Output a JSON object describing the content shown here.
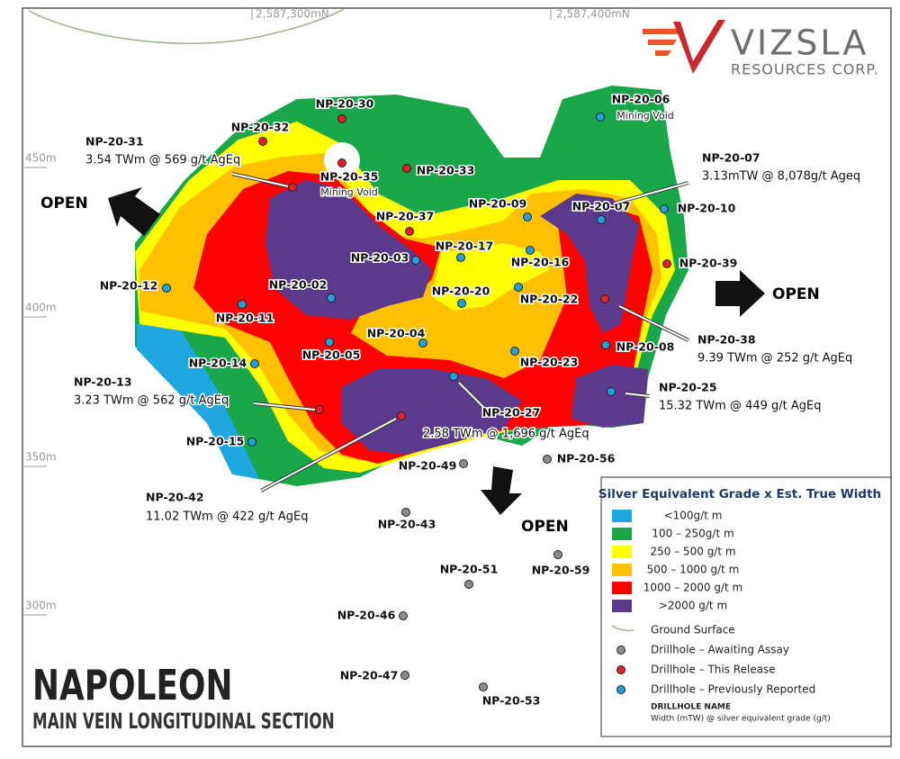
{
  "grid": {
    "eastings": [
      "2,587,300mN",
      "2,587,400mN"
    ],
    "elevations": [
      "450m",
      "400m",
      "350m",
      "300m"
    ]
  },
  "logo": {
    "name": "VIZSLA",
    "tagline": "RESOURCES CORP."
  },
  "title": "NAPOLEON",
  "subtitle": "MAIN VEIN LONGITUDINAL SECTION",
  "open_labels": [
    "OPEN",
    "OPEN",
    "OPEN"
  ],
  "drillholes": [
    {
      "label": "NP-20-30",
      "color": "#e31e24"
    },
    {
      "label": "NP-20-32",
      "color": "#e31e24"
    },
    {
      "label": "NP-20-35",
      "color": "#e31e24",
      "note": "Mining Void"
    },
    {
      "label": "NP-20-33",
      "color": "#e31e24"
    },
    {
      "label": "NP-20-37",
      "color": "#e31e24"
    },
    {
      "label": "NP-20-06",
      "color": "#1fa3dc",
      "note": "Mining Void"
    },
    {
      "label": "NP-20-09",
      "color": "#1fa3dc"
    },
    {
      "label": "NP-20-07",
      "color": "#1fa3dc"
    },
    {
      "label": "NP-20-10",
      "color": "#1fa3dc"
    },
    {
      "label": "NP-20-39",
      "color": "#e31e24"
    },
    {
      "label": "NP-20-17",
      "color": "#1fa3dc"
    },
    {
      "label": "NP-20-16",
      "color": "#1fa3dc"
    },
    {
      "label": "NP-20-03",
      "color": "#1fa3dc"
    },
    {
      "label": "NP-20-02",
      "color": "#1fa3dc"
    },
    {
      "label": "NP-20-20",
      "color": "#1fa3dc"
    },
    {
      "label": "NP-20-22",
      "color": "#1fa3dc"
    },
    {
      "label": "NP-20-12",
      "color": "#1fa3dc"
    },
    {
      "label": "NP-20-11",
      "color": "#1fa3dc"
    },
    {
      "label": "NP-20-04",
      "color": "#1fa3dc"
    },
    {
      "label": "NP-20-05",
      "color": "#1fa3dc"
    },
    {
      "label": "NP-20-14",
      "color": "#1fa3dc"
    },
    {
      "label": "NP-20-23",
      "color": "#1fa3dc"
    },
    {
      "label": "NP-20-08",
      "color": "#1fa3dc"
    },
    {
      "label": "NP-20-15",
      "color": "#1fa3dc"
    },
    {
      "label": "NP-20-49",
      "color": "#8c8c8c"
    },
    {
      "label": "NP-20-56",
      "color": "#8c8c8c"
    },
    {
      "label": "NP-20-43",
      "color": "#8c8c8c"
    },
    {
      "label": "NP-20-51",
      "color": "#8c8c8c"
    },
    {
      "label": "NP-20-59",
      "color": "#8c8c8c"
    },
    {
      "label": "NP-20-46",
      "color": "#8c8c8c"
    },
    {
      "label": "NP-20-47",
      "color": "#8c8c8c"
    },
    {
      "label": "NP-20-53",
      "color": "#8c8c8c"
    }
  ],
  "callouts": [
    {
      "hole": "NP-20-31",
      "text": "3.54 TWm @ 569 g/t AgEq",
      "color": "#e31e24"
    },
    {
      "hole": "NP-20-07",
      "text": "3.13mTW @ 8,078g/t Ageq"
    },
    {
      "hole": "NP-20-38",
      "text": "9.39 TWm @ 252 g/t AgEq",
      "color": "#e31e24"
    },
    {
      "hole": "NP-20-25",
      "text": "15.32 TWm @ 449 g/t AgEq",
      "color": "#1fa3dc"
    },
    {
      "hole": "NP-20-13",
      "text": "3.23 TWm @ 562 g/t AgEq",
      "color": "#e31e24"
    },
    {
      "hole": "NP-20-27",
      "text": "2.58 TWm @ 1,696 g/t AgEq",
      "color": "#1fa3dc"
    },
    {
      "hole": "NP-20-42",
      "text": "11.02 TWm @ 422 g/t AgEq",
      "color": "#e31e24"
    }
  ],
  "legend": {
    "title": "Silver Equivalent Grade x Est. True Width",
    "grades": [
      {
        "label": "<100g/t m",
        "color": "#1fa7e0"
      },
      {
        "label": "100 – 250g/t m",
        "color": "#1aa64a"
      },
      {
        "label": "250 – 500 g/t m",
        "color": "#ffff00"
      },
      {
        "label": "500 – 1000 g/t m",
        "color": "#ffc000"
      },
      {
        "label": "1000 – 2000 g/t m",
        "color": "#ff0000"
      },
      {
        "label": ">2000 g/t m",
        "color": "#5b3a8c"
      }
    ],
    "ground_surface": "Ground Surface",
    "symbols": [
      {
        "label": "Drillhole – Awaiting Assay",
        "color": "#8c8c8c"
      },
      {
        "label": "Drillhole – This Release",
        "color": "#e31e24"
      },
      {
        "label": "Drillhole – Previously Reported",
        "color": "#1fa3dc"
      }
    ],
    "name_key": "DRILLHOLE NAME",
    "width_key": "Width (mTW) @ silver equivalent grade (g/t)"
  }
}
